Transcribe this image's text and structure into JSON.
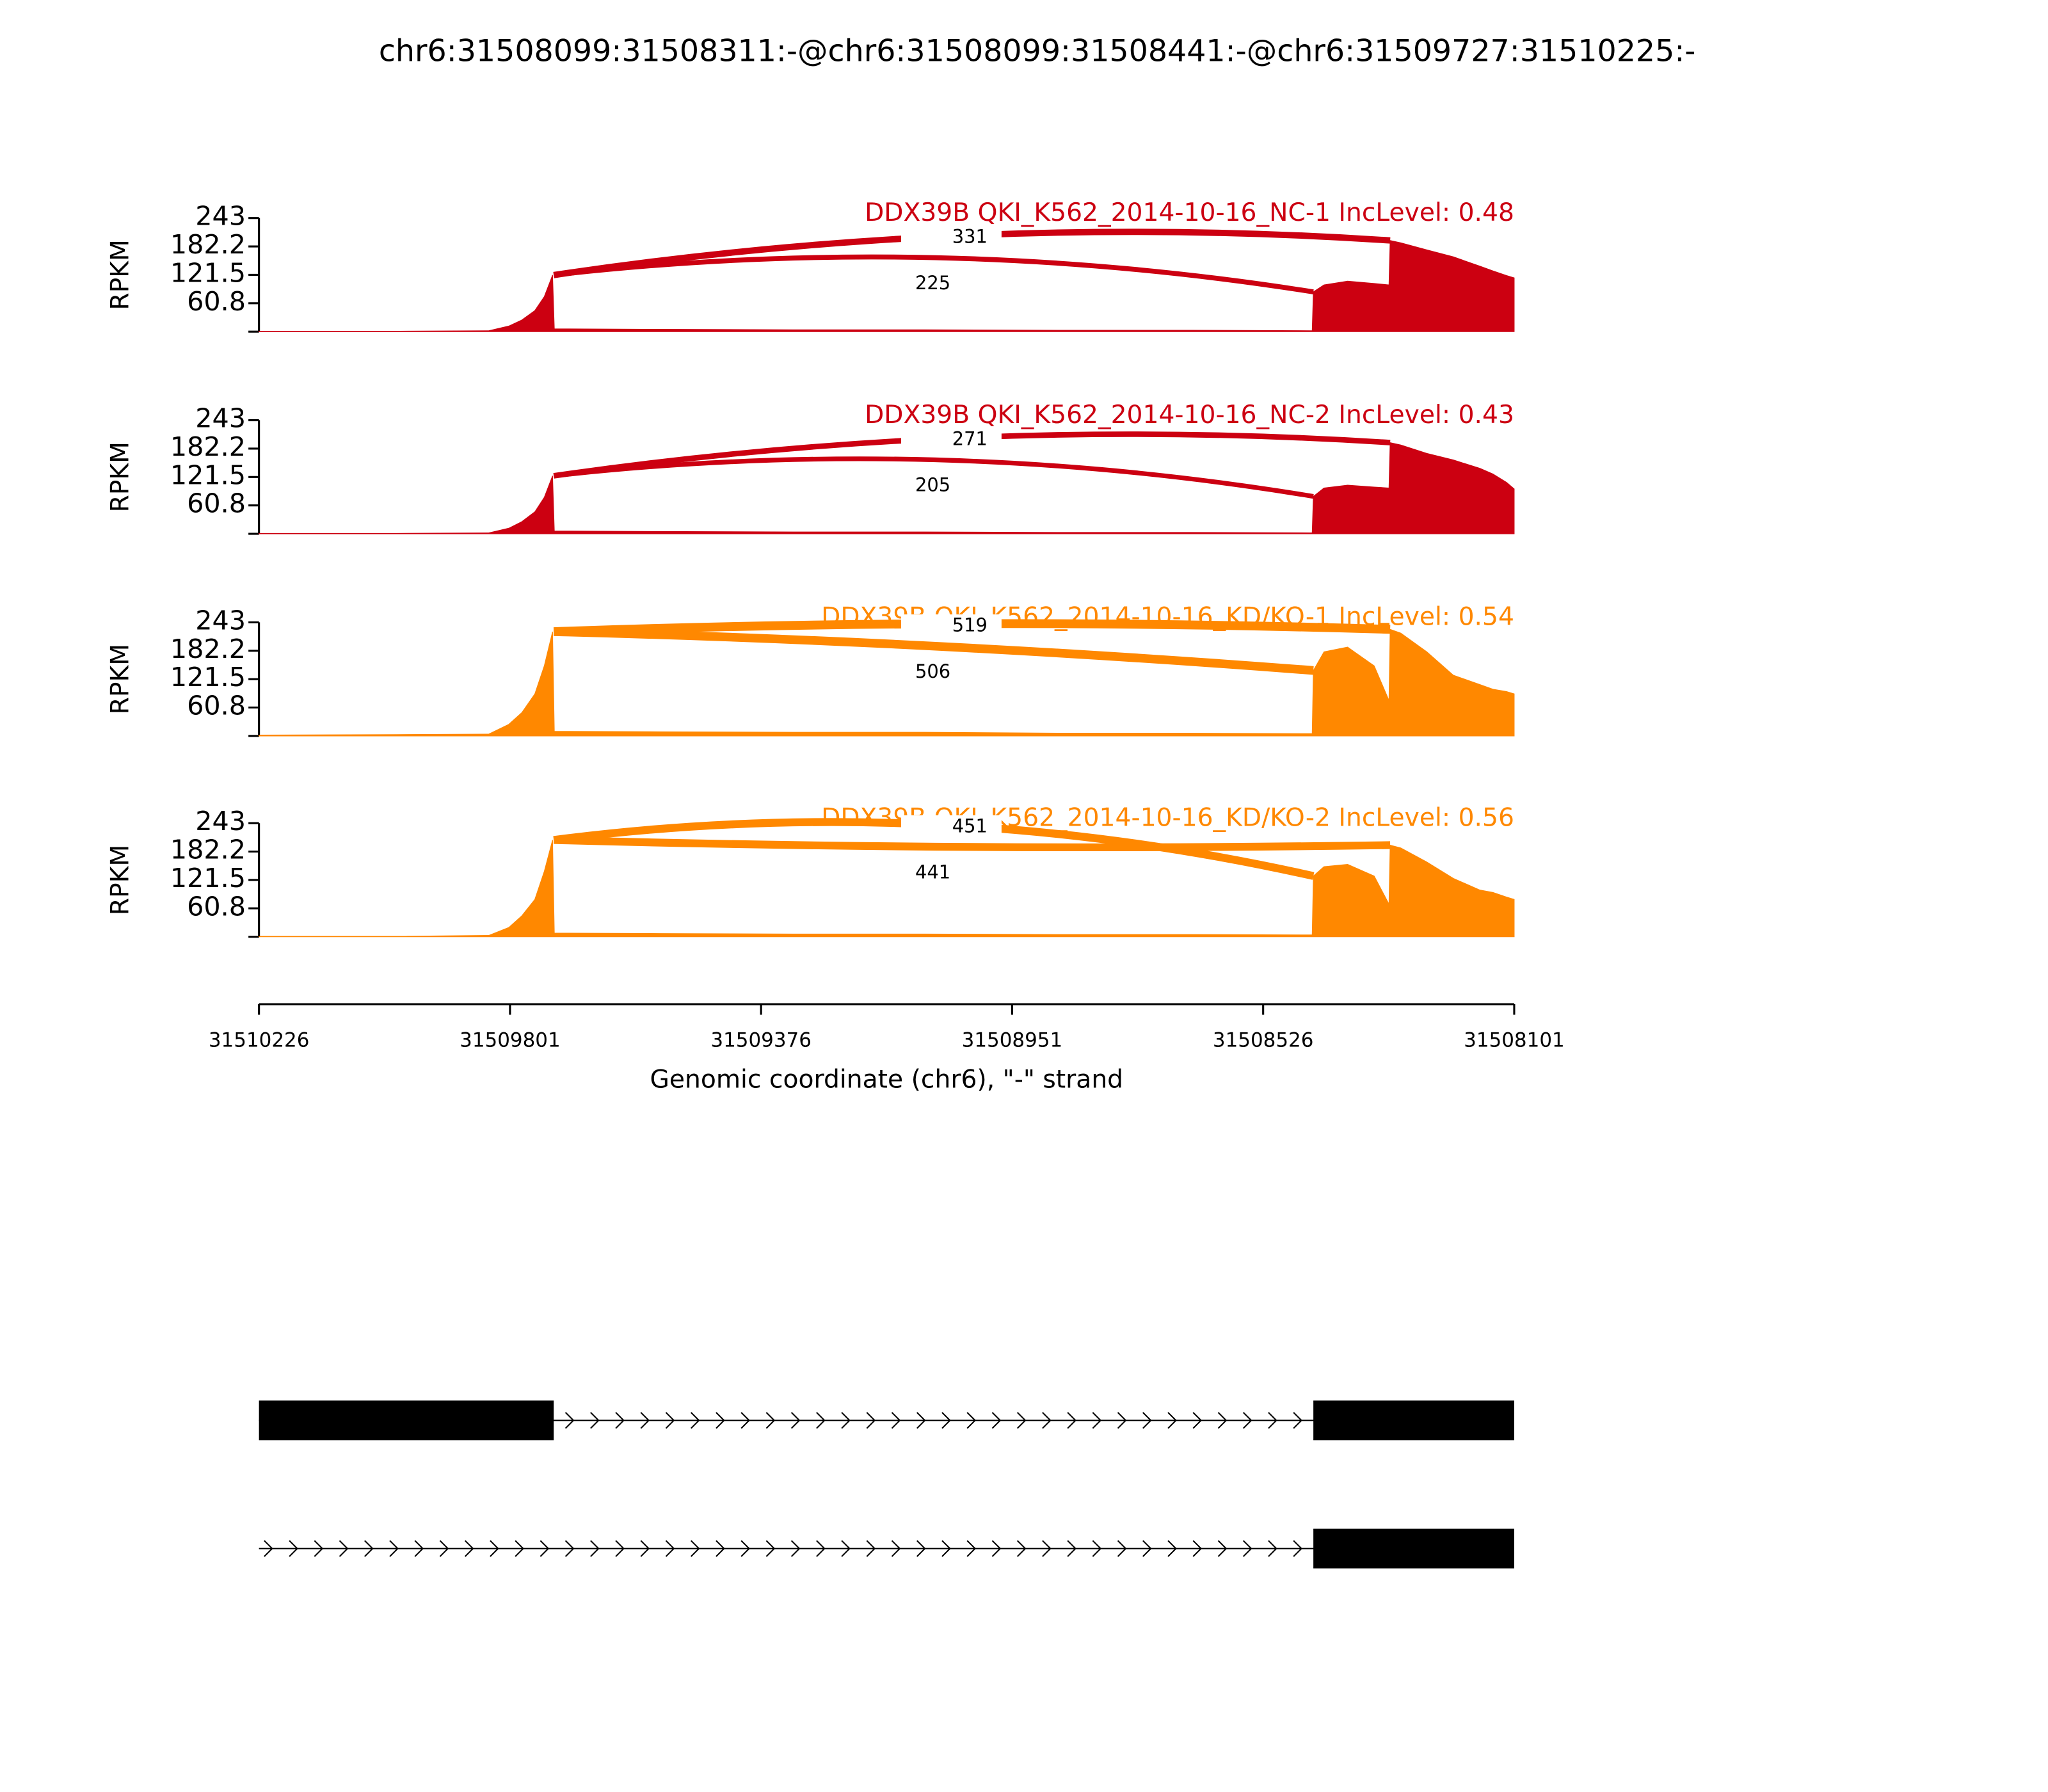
{
  "chart_data": {
    "type": "sashimi",
    "title": "chr6:31508099:31508311:-@chr6:31508099:31508441:-@chr6:31509727:31510225:-",
    "xlabel": "Genomic coordinate (chr6), \"-\" strand",
    "ylabel": "RPKM",
    "xlim": [
      31510226,
      31508101
    ],
    "xticks": [
      31510226,
      31509801,
      31509376,
      31508951,
      31508526,
      31508101
    ],
    "ylim": [
      0,
      243
    ],
    "yticks": [
      60.8,
      121.5,
      182.2,
      243
    ],
    "x": [
      31510226,
      31509993,
      31509837,
      31509803,
      31509781,
      31509759,
      31509743,
      31509729,
      31509726,
      31509546,
      31509322,
      31509099,
      31508875,
      31508651,
      31508443,
      31508441,
      31508423,
      31508383,
      31508338,
      31508313,
      31508311,
      31508293,
      31508249,
      31508204,
      31508159,
      31508137,
      31508114,
      31508101
    ],
    "series": [
      {
        "name": "DDX39B QKI_K562_2014-10-16_NC-1 IncLevel: 0.48",
        "color": "#cc0011",
        "values": [
          1,
          1,
          2,
          12,
          25,
          45,
          75,
          121,
          6,
          5,
          4,
          4,
          3,
          3,
          2,
          85,
          100,
          108,
          103,
          100,
          195,
          190,
          175,
          160,
          140,
          130,
          120,
          115
        ],
        "junctions": [
          {
            "start": 31509727,
            "end": 31508311,
            "count": 331
          },
          {
            "start": 31509727,
            "end": 31508441,
            "count": 225
          }
        ]
      },
      {
        "name": "DDX39B QKI_K562_2014-10-16_NC-2 IncLevel: 0.43",
        "color": "#cc0011",
        "values": [
          1,
          1,
          2,
          12,
          26,
          47,
          78,
          124,
          6,
          5,
          4,
          4,
          3,
          3,
          2,
          80,
          98,
          104,
          100,
          98,
          195,
          190,
          172,
          158,
          140,
          128,
          110,
          96
        ],
        "junctions": [
          {
            "start": 31509727,
            "end": 31508311,
            "count": 271
          },
          {
            "start": 31509727,
            "end": 31508441,
            "count": 205
          }
        ]
      },
      {
        "name": "DDX39B QKI_K562_2014-10-16_KD/KO-1 IncLevel: 0.54",
        "color": "#ff8800",
        "values": [
          2,
          3,
          4,
          25,
          50,
          90,
          150,
          223,
          10,
          9,
          8,
          8,
          6,
          6,
          5,
          140,
          180,
          190,
          150,
          76,
          228,
          220,
          180,
          130,
          110,
          100,
          95,
          90
        ],
        "junctions": [
          {
            "start": 31509727,
            "end": 31508311,
            "count": 519
          },
          {
            "start": 31509727,
            "end": 31508441,
            "count": 506
          }
        ]
      },
      {
        "name": "DDX39B QKI_K562_2014-10-16_KD/KO-2 IncLevel: 0.56",
        "color": "#ff8800",
        "values": [
          1,
          1,
          3,
          20,
          45,
          80,
          140,
          207,
          8,
          7,
          6,
          6,
          5,
          5,
          4,
          130,
          150,
          155,
          130,
          70,
          196,
          190,
          160,
          125,
          100,
          95,
          85,
          80
        ],
        "junctions": [
          {
            "start": 31509727,
            "end": 31508311,
            "count": 441
          },
          {
            "start": 31509727,
            "end": 31508441,
            "count": 451
          }
        ]
      }
    ],
    "transcripts": [
      {
        "start": 31510226,
        "end": 31508101,
        "exons": [
          [
            31510226,
            31509727
          ],
          [
            31508441,
            31508101
          ]
        ]
      },
      {
        "start": 31510226,
        "end": 31508101,
        "exons": [
          [
            31508441,
            31508101
          ]
        ]
      }
    ]
  }
}
